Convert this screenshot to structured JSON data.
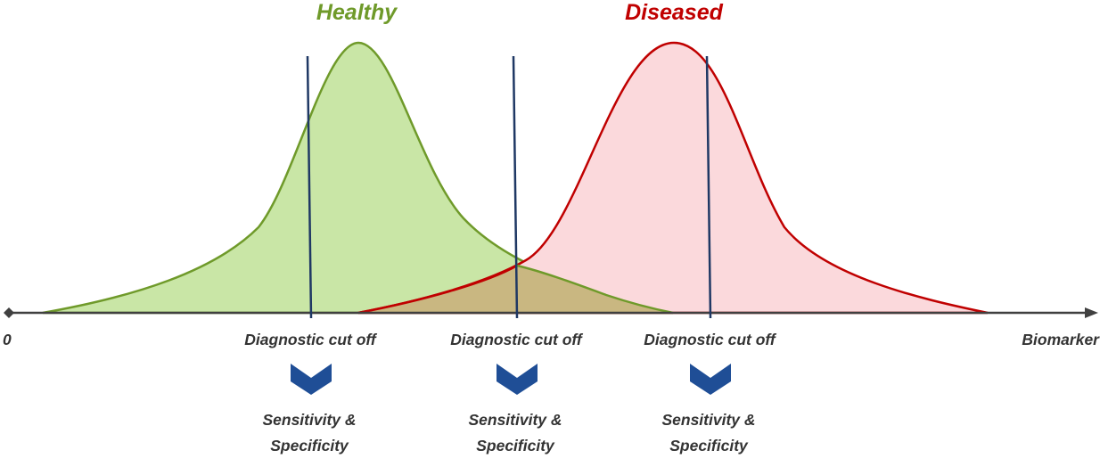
{
  "diagram": {
    "healthy_label": "Healthy",
    "diseased_label": "Diseased",
    "axis_origin_label": "0",
    "axis_end_label": "Biomarker",
    "cutoffs": [
      {
        "label": "Diagnostic cut off",
        "result_line1": "Sensitivity &",
        "result_line2": "Specificity"
      },
      {
        "label": "Diagnostic cut off",
        "result_line1": "Sensitivity &",
        "result_line2": "Specificity"
      },
      {
        "label": "Diagnostic cut off",
        "result_line1": "Sensitivity &",
        "result_line2": "Specificity"
      }
    ]
  },
  "colors": {
    "healthy_stroke": "#6f9a2a",
    "healthy_fill": "#c9e6a6",
    "diseased_stroke": "#c00000",
    "diseased_fill": "#fbd9dc",
    "overlap_fill": "#c9b781",
    "axis": "#404040",
    "cutoff_line": "#1f3864",
    "chevron": "#1f4e96",
    "healthy_text": "#6f9a2a",
    "diseased_text": "#c00000"
  }
}
